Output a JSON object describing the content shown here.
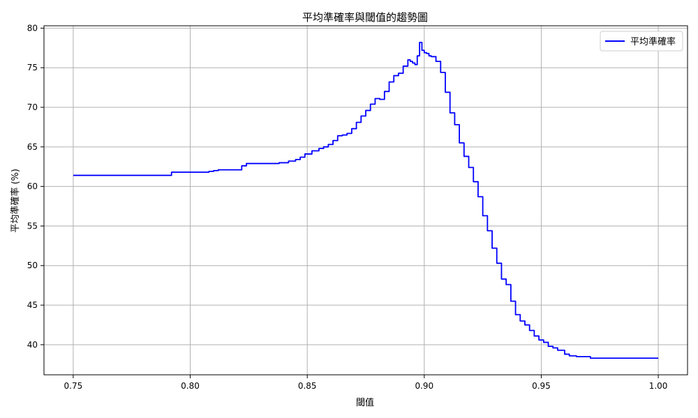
{
  "chart_data": {
    "type": "line",
    "title": "平均準確率與閾值的趨勢圖",
    "xlabel": "閾值",
    "ylabel": "平均準確率 (%)",
    "xlim": [
      0.7375,
      1.0125
    ],
    "ylim": [
      36.2,
      80.3
    ],
    "grid": true,
    "legend_position": "top-right",
    "x_ticks": [
      "0.75",
      "0.80",
      "0.85",
      "0.90",
      "0.95",
      "1.00"
    ],
    "y_ticks": [
      "40",
      "45",
      "50",
      "55",
      "60",
      "65",
      "70",
      "75",
      "80"
    ],
    "series": [
      {
        "name": "平均準確率",
        "color": "#0000ff",
        "x": [
          0.75,
          0.76,
          0.77,
          0.78,
          0.791,
          0.792,
          0.8,
          0.807,
          0.808,
          0.81,
          0.812,
          0.82,
          0.822,
          0.824,
          0.83,
          0.836,
          0.838,
          0.842,
          0.845,
          0.847,
          0.849,
          0.852,
          0.855,
          0.857,
          0.859,
          0.861,
          0.863,
          0.865,
          0.867,
          0.869,
          0.871,
          0.873,
          0.875,
          0.877,
          0.879,
          0.881,
          0.883,
          0.885,
          0.887,
          0.889,
          0.891,
          0.893,
          0.894,
          0.895,
          0.896,
          0.897,
          0.898,
          0.899,
          0.9,
          0.901,
          0.902,
          0.903,
          0.905,
          0.907,
          0.909,
          0.911,
          0.913,
          0.915,
          0.917,
          0.919,
          0.921,
          0.923,
          0.925,
          0.927,
          0.929,
          0.931,
          0.933,
          0.935,
          0.937,
          0.939,
          0.941,
          0.943,
          0.945,
          0.947,
          0.949,
          0.951,
          0.953,
          0.955,
          0.957,
          0.96,
          0.962,
          0.965,
          0.968,
          0.971,
          0.975,
          0.98,
          0.99,
          1.0
        ],
        "y": [
          61.4,
          61.4,
          61.4,
          61.4,
          61.4,
          61.8,
          61.8,
          61.8,
          61.9,
          62.0,
          62.1,
          62.1,
          62.6,
          62.9,
          62.9,
          62.9,
          63.0,
          63.2,
          63.4,
          63.7,
          64.1,
          64.5,
          64.8,
          65.0,
          65.3,
          65.8,
          66.4,
          66.5,
          66.7,
          67.3,
          68.1,
          68.9,
          69.6,
          70.4,
          71.1,
          71.0,
          72.0,
          73.2,
          74.0,
          74.3,
          75.2,
          76.0,
          75.8,
          75.6,
          75.4,
          76.5,
          78.2,
          77.2,
          76.9,
          76.8,
          76.5,
          76.4,
          75.8,
          74.4,
          71.9,
          69.3,
          67.8,
          65.5,
          63.8,
          62.4,
          60.6,
          58.7,
          56.3,
          54.4,
          52.2,
          50.3,
          48.3,
          47.6,
          45.5,
          43.8,
          43.0,
          42.5,
          41.8,
          41.1,
          40.6,
          40.3,
          39.8,
          39.6,
          39.3,
          38.8,
          38.6,
          38.5,
          38.5,
          38.3,
          38.3,
          38.3,
          38.3,
          38.3
        ]
      }
    ]
  }
}
